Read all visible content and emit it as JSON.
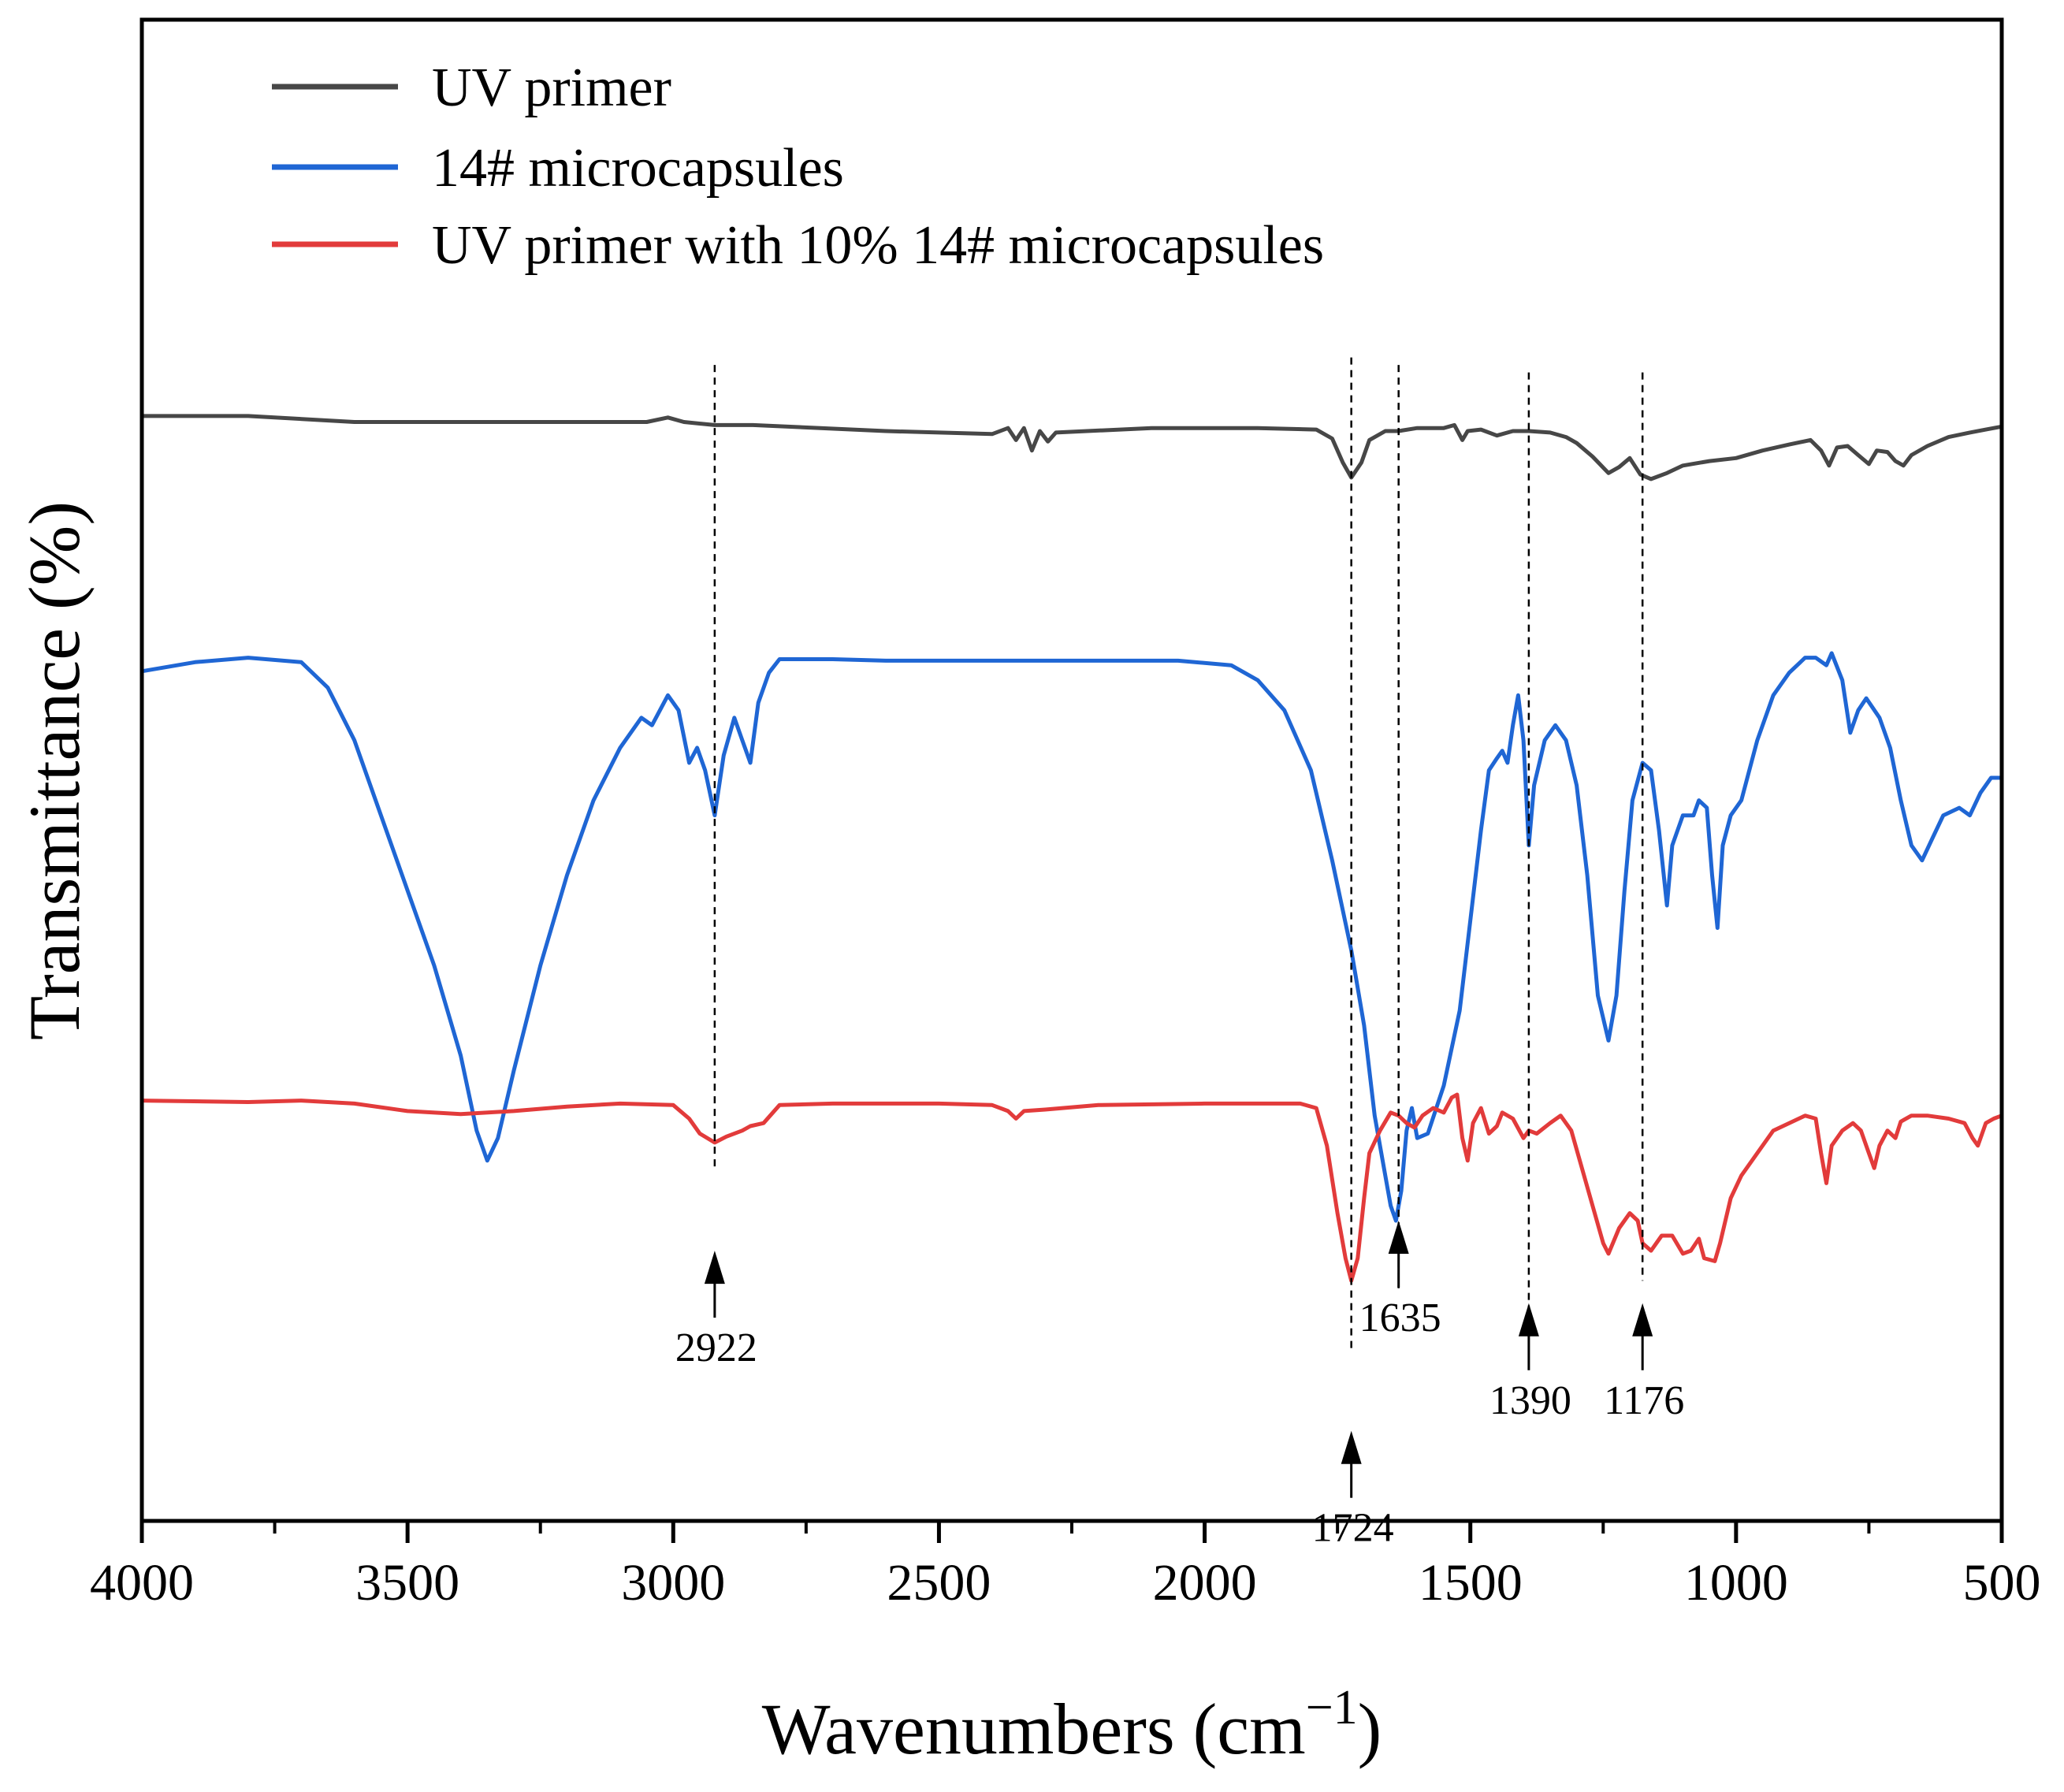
{
  "chart_data": {
    "type": "line",
    "title": "",
    "xlabel": "Wavenumbers (cm",
    "xlabel_superscript": "−1",
    "xlabel_close": ")",
    "ylabel": "Transmittance (%)",
    "xlim": [
      4000,
      500
    ],
    "x_reversed": true,
    "ylim": [
      0,
      100
    ],
    "y_ticks_shown": false,
    "grid": false,
    "legend_position": "top-left",
    "x_ticks": [
      {
        "value": 4000,
        "label": "4000"
      },
      {
        "value": 3500,
        "label": "3500"
      },
      {
        "value": 3000,
        "label": "3000"
      },
      {
        "value": 2500,
        "label": "2500"
      },
      {
        "value": 2000,
        "label": "2000"
      },
      {
        "value": 1500,
        "label": "1500"
      },
      {
        "value": 1000,
        "label": "1000"
      },
      {
        "value": 500,
        "label": "500"
      }
    ],
    "x_minor_ticks": [
      3750,
      3250,
      2750,
      2250,
      1750,
      1250,
      750
    ],
    "series": [
      {
        "name": "UV primer",
        "color": "#474747",
        "points": [
          [
            4000,
            73.6
          ],
          [
            3800,
            73.6
          ],
          [
            3600,
            73.2
          ],
          [
            3200,
            73.2
          ],
          [
            3050,
            73.2
          ],
          [
            3010,
            73.5
          ],
          [
            2980,
            73.2
          ],
          [
            2922,
            73.0
          ],
          [
            2850,
            73.0
          ],
          [
            2600,
            72.6
          ],
          [
            2400,
            72.4
          ],
          [
            2370,
            72.8
          ],
          [
            2355,
            72.0
          ],
          [
            2340,
            72.8
          ],
          [
            2325,
            71.3
          ],
          [
            2310,
            72.6
          ],
          [
            2295,
            71.9
          ],
          [
            2280,
            72.5
          ],
          [
            2100,
            72.8
          ],
          [
            1900,
            72.8
          ],
          [
            1790,
            72.7
          ],
          [
            1760,
            72.1
          ],
          [
            1740,
            70.5
          ],
          [
            1724,
            69.5
          ],
          [
            1705,
            70.5
          ],
          [
            1690,
            72.0
          ],
          [
            1660,
            72.6
          ],
          [
            1635,
            72.6
          ],
          [
            1600,
            72.8
          ],
          [
            1550,
            72.8
          ],
          [
            1530,
            73.0
          ],
          [
            1515,
            72.0
          ],
          [
            1505,
            72.6
          ],
          [
            1480,
            72.7
          ],
          [
            1450,
            72.3
          ],
          [
            1420,
            72.6
          ],
          [
            1390,
            72.6
          ],
          [
            1350,
            72.5
          ],
          [
            1320,
            72.2
          ],
          [
            1300,
            71.8
          ],
          [
            1270,
            70.9
          ],
          [
            1240,
            69.8
          ],
          [
            1220,
            70.2
          ],
          [
            1200,
            70.8
          ],
          [
            1180,
            69.7
          ],
          [
            1160,
            69.4
          ],
          [
            1130,
            69.8
          ],
          [
            1100,
            70.3
          ],
          [
            1050,
            70.6
          ],
          [
            1000,
            70.8
          ],
          [
            950,
            71.3
          ],
          [
            900,
            71.7
          ],
          [
            860,
            72.0
          ],
          [
            840,
            71.3
          ],
          [
            825,
            70.3
          ],
          [
            810,
            71.5
          ],
          [
            790,
            71.6
          ],
          [
            770,
            71.0
          ],
          [
            750,
            70.4
          ],
          [
            735,
            71.3
          ],
          [
            715,
            71.2
          ],
          [
            700,
            70.6
          ],
          [
            685,
            70.3
          ],
          [
            670,
            71.0
          ],
          [
            640,
            71.6
          ],
          [
            600,
            72.2
          ],
          [
            560,
            72.5
          ],
          [
            530,
            72.7
          ],
          [
            500,
            72.9
          ]
        ]
      },
      {
        "name": "14# microcapsules",
        "color": "#1f66d4",
        "points": [
          [
            4000,
            56.6
          ],
          [
            3900,
            57.2
          ],
          [
            3800,
            57.5
          ],
          [
            3700,
            57.2
          ],
          [
            3650,
            55.5
          ],
          [
            3600,
            52.0
          ],
          [
            3550,
            47.0
          ],
          [
            3500,
            42.0
          ],
          [
            3450,
            37.0
          ],
          [
            3400,
            31.0
          ],
          [
            3370,
            26.0
          ],
          [
            3350,
            24.0
          ],
          [
            3330,
            25.5
          ],
          [
            3300,
            30.0
          ],
          [
            3250,
            37.0
          ],
          [
            3200,
            43.0
          ],
          [
            3150,
            48.0
          ],
          [
            3100,
            51.5
          ],
          [
            3060,
            53.5
          ],
          [
            3040,
            53.0
          ],
          [
            3010,
            55.0
          ],
          [
            2990,
            54.0
          ],
          [
            2970,
            50.5
          ],
          [
            2955,
            51.5
          ],
          [
            2940,
            50.0
          ],
          [
            2922,
            47.0
          ],
          [
            2905,
            51.0
          ],
          [
            2885,
            53.5
          ],
          [
            2870,
            52.0
          ],
          [
            2855,
            50.5
          ],
          [
            2840,
            54.5
          ],
          [
            2820,
            56.5
          ],
          [
            2800,
            57.4
          ],
          [
            2700,
            57.4
          ],
          [
            2600,
            57.3
          ],
          [
            2500,
            57.3
          ],
          [
            2350,
            57.3
          ],
          [
            2200,
            57.3
          ],
          [
            2050,
            57.3
          ],
          [
            1950,
            57.0
          ],
          [
            1900,
            56.0
          ],
          [
            1850,
            54.0
          ],
          [
            1800,
            50.0
          ],
          [
            1760,
            44.0
          ],
          [
            1724,
            38.0
          ],
          [
            1700,
            33.0
          ],
          [
            1680,
            27.0
          ],
          [
            1660,
            23.0
          ],
          [
            1650,
            21.0
          ],
          [
            1640,
            20.0
          ],
          [
            1630,
            22.0
          ],
          [
            1620,
            26.0
          ],
          [
            1610,
            27.5
          ],
          [
            1600,
            25.5
          ],
          [
            1580,
            25.8
          ],
          [
            1550,
            29.0
          ],
          [
            1520,
            34.0
          ],
          [
            1500,
            40.0
          ],
          [
            1480,
            46.0
          ],
          [
            1465,
            50.0
          ],
          [
            1450,
            50.8
          ],
          [
            1440,
            51.3
          ],
          [
            1430,
            50.5
          ],
          [
            1420,
            53.0
          ],
          [
            1410,
            55.0
          ],
          [
            1400,
            52.0
          ],
          [
            1390,
            45.0
          ],
          [
            1380,
            49.0
          ],
          [
            1360,
            52.0
          ],
          [
            1340,
            53.0
          ],
          [
            1320,
            52.0
          ],
          [
            1300,
            49.0
          ],
          [
            1280,
            43.0
          ],
          [
            1260,
            35.0
          ],
          [
            1240,
            32.0
          ],
          [
            1225,
            35.0
          ],
          [
            1210,
            42.0
          ],
          [
            1195,
            48.0
          ],
          [
            1176,
            50.5
          ],
          [
            1160,
            50.0
          ],
          [
            1145,
            46.0
          ],
          [
            1130,
            41.0
          ],
          [
            1120,
            45.0
          ],
          [
            1100,
            47.0
          ],
          [
            1080,
            47.0
          ],
          [
            1070,
            48.0
          ],
          [
            1055,
            47.5
          ],
          [
            1045,
            43.0
          ],
          [
            1035,
            39.5
          ],
          [
            1025,
            45.0
          ],
          [
            1010,
            47.0
          ],
          [
            990,
            48.0
          ],
          [
            960,
            52.0
          ],
          [
            930,
            55.0
          ],
          [
            900,
            56.5
          ],
          [
            870,
            57.5
          ],
          [
            850,
            57.5
          ],
          [
            830,
            57.0
          ],
          [
            820,
            57.8
          ],
          [
            800,
            56.0
          ],
          [
            785,
            52.5
          ],
          [
            770,
            54.0
          ],
          [
            755,
            54.8
          ],
          [
            730,
            53.5
          ],
          [
            710,
            51.5
          ],
          [
            690,
            48.0
          ],
          [
            670,
            45.0
          ],
          [
            650,
            44.0
          ],
          [
            630,
            45.5
          ],
          [
            610,
            47.0
          ],
          [
            580,
            47.5
          ],
          [
            560,
            47.0
          ],
          [
            540,
            48.5
          ],
          [
            520,
            49.5
          ],
          [
            500,
            49.5
          ]
        ]
      },
      {
        "name": "UV primer with 10% 14# microcapsules",
        "color": "#e23b3b",
        "points": [
          [
            4000,
            28.0
          ],
          [
            3800,
            27.9
          ],
          [
            3700,
            28.0
          ],
          [
            3600,
            27.8
          ],
          [
            3500,
            27.3
          ],
          [
            3400,
            27.1
          ],
          [
            3300,
            27.3
          ],
          [
            3200,
            27.6
          ],
          [
            3100,
            27.8
          ],
          [
            3000,
            27.7
          ],
          [
            2970,
            26.8
          ],
          [
            2950,
            25.8
          ],
          [
            2922,
            25.2
          ],
          [
            2900,
            25.6
          ],
          [
            2870,
            26.0
          ],
          [
            2855,
            26.3
          ],
          [
            2830,
            26.5
          ],
          [
            2800,
            27.7
          ],
          [
            2700,
            27.8
          ],
          [
            2500,
            27.8
          ],
          [
            2400,
            27.7
          ],
          [
            2370,
            27.3
          ],
          [
            2355,
            26.8
          ],
          [
            2340,
            27.3
          ],
          [
            2300,
            27.4
          ],
          [
            2200,
            27.7
          ],
          [
            2000,
            27.8
          ],
          [
            1900,
            27.8
          ],
          [
            1820,
            27.8
          ],
          [
            1790,
            27.5
          ],
          [
            1770,
            25.0
          ],
          [
            1750,
            20.5
          ],
          [
            1735,
            17.5
          ],
          [
            1724,
            16.0
          ],
          [
            1712,
            17.5
          ],
          [
            1700,
            21.5
          ],
          [
            1690,
            24.5
          ],
          [
            1670,
            26.0
          ],
          [
            1650,
            27.2
          ],
          [
            1635,
            27.0
          ],
          [
            1620,
            26.5
          ],
          [
            1605,
            26.2
          ],
          [
            1590,
            27.0
          ],
          [
            1570,
            27.5
          ],
          [
            1550,
            27.2
          ],
          [
            1535,
            28.2
          ],
          [
            1525,
            28.4
          ],
          [
            1515,
            25.5
          ],
          [
            1505,
            24.0
          ],
          [
            1495,
            26.5
          ],
          [
            1480,
            27.5
          ],
          [
            1465,
            25.8
          ],
          [
            1450,
            26.3
          ],
          [
            1440,
            27.2
          ],
          [
            1420,
            26.8
          ],
          [
            1400,
            25.5
          ],
          [
            1390,
            26.0
          ],
          [
            1375,
            25.8
          ],
          [
            1350,
            26.5
          ],
          [
            1330,
            27.0
          ],
          [
            1310,
            26.0
          ],
          [
            1290,
            23.5
          ],
          [
            1270,
            21.0
          ],
          [
            1250,
            18.5
          ],
          [
            1240,
            17.8
          ],
          [
            1220,
            19.5
          ],
          [
            1200,
            20.5
          ],
          [
            1185,
            20.0
          ],
          [
            1176,
            18.5
          ],
          [
            1160,
            18.0
          ],
          [
            1140,
            19.0
          ],
          [
            1120,
            19.0
          ],
          [
            1100,
            17.8
          ],
          [
            1085,
            18.0
          ],
          [
            1070,
            18.8
          ],
          [
            1060,
            17.5
          ],
          [
            1040,
            17.3
          ],
          [
            1030,
            18.5
          ],
          [
            1010,
            21.5
          ],
          [
            990,
            23.0
          ],
          [
            960,
            24.5
          ],
          [
            930,
            26.0
          ],
          [
            900,
            26.5
          ],
          [
            870,
            27.0
          ],
          [
            850,
            26.8
          ],
          [
            840,
            24.5
          ],
          [
            830,
            22.5
          ],
          [
            820,
            25.0
          ],
          [
            800,
            26.0
          ],
          [
            780,
            26.5
          ],
          [
            765,
            26.0
          ],
          [
            750,
            24.5
          ],
          [
            740,
            23.5
          ],
          [
            730,
            25.0
          ],
          [
            715,
            26.0
          ],
          [
            700,
            25.5
          ],
          [
            690,
            26.6
          ],
          [
            670,
            27.0
          ],
          [
            640,
            27.0
          ],
          [
            600,
            26.8
          ],
          [
            570,
            26.5
          ],
          [
            555,
            25.5
          ],
          [
            545,
            25.0
          ],
          [
            530,
            26.5
          ],
          [
            515,
            26.8
          ],
          [
            500,
            27.0
          ]
        ]
      }
    ],
    "peaks": [
      {
        "wavenumber": 2922,
        "label": "2922",
        "line_from": 77.0,
        "line_to": 23.5,
        "arrow_tip": 18.0,
        "label_pos": "below"
      },
      {
        "wavenumber": 1724,
        "label": "1724",
        "line_from": 77.5,
        "line_to": 11.5,
        "arrow_tip": 6.0,
        "label_pos": "below"
      },
      {
        "wavenumber": 1635,
        "label": "1635",
        "line_from": 77.0,
        "line_to": 15.5,
        "arrow_tip": 20.0,
        "label_pos": "below"
      },
      {
        "wavenumber": 1390,
        "label": "1390",
        "line_from": 76.5,
        "line_to": 13.5,
        "arrow_tip": 14.5,
        "label_pos": "below"
      },
      {
        "wavenumber": 1176,
        "label": "1176",
        "line_from": 76.5,
        "line_to": 16.0,
        "arrow_tip": 14.5,
        "label_pos": "below"
      }
    ]
  }
}
